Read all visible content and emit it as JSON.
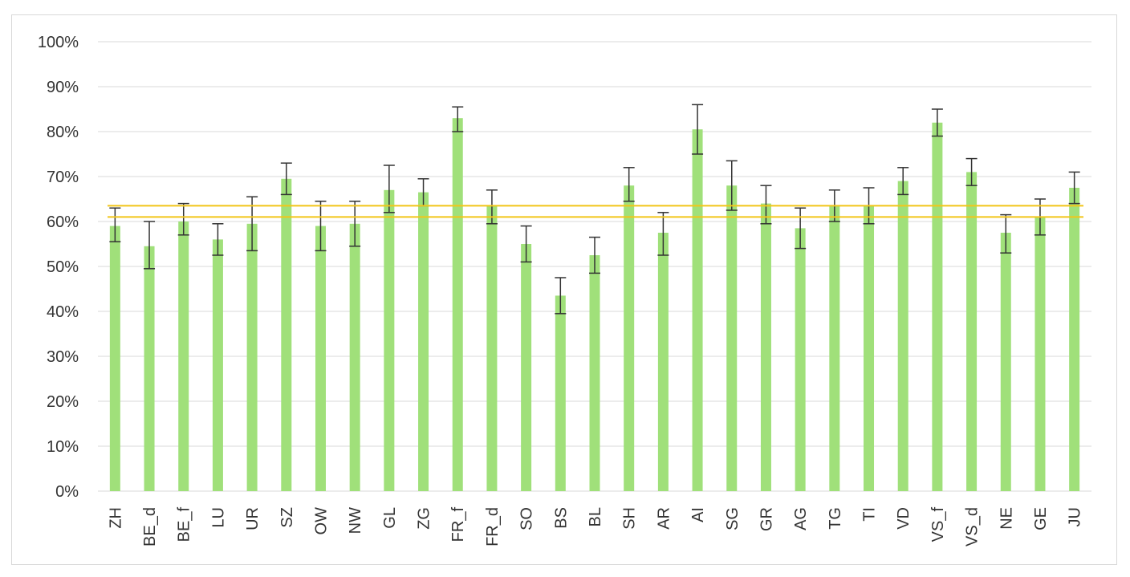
{
  "chart_data": {
    "type": "bar",
    "title": "",
    "xlabel": "",
    "ylabel": "",
    "ylim": [
      0,
      100
    ],
    "y_ticks": [
      "0%",
      "10%",
      "20%",
      "30%",
      "40%",
      "50%",
      "60%",
      "70%",
      "80%",
      "90%",
      "100%"
    ],
    "grid": true,
    "categories": [
      "ZH",
      "BE_d",
      "BE_f",
      "LU",
      "UR",
      "SZ",
      "OW",
      "NW",
      "GL",
      "ZG",
      "FR_f",
      "FR_d",
      "SO",
      "BS",
      "BL",
      "SH",
      "AR",
      "AI",
      "SG",
      "GR",
      "AG",
      "TG",
      "TI",
      "VD",
      "VS_f",
      "VS_d",
      "NE",
      "GE",
      "JU"
    ],
    "values": [
      59,
      54.5,
      60,
      56,
      59.5,
      69.5,
      59,
      59.5,
      67,
      66.5,
      83,
      63.5,
      55,
      43.5,
      52.5,
      68,
      57.5,
      80.5,
      68,
      64,
      58.5,
      63.5,
      63.5,
      69,
      82,
      71,
      57.5,
      61,
      67.5
    ],
    "error_low": [
      55.5,
      49.5,
      57,
      52.5,
      53.5,
      66,
      53.5,
      54.5,
      62,
      63.5,
      80,
      59.5,
      51,
      39.5,
      48.5,
      64.5,
      52.5,
      75,
      62.5,
      59.5,
      54,
      60,
      59.5,
      66,
      79,
      68,
      53,
      57,
      64
    ],
    "error_high": [
      63,
      60,
      64,
      59.5,
      65.5,
      73,
      64.5,
      64.5,
      72.5,
      69.5,
      85.5,
      67,
      59,
      47.5,
      56.5,
      72,
      62,
      86,
      73.5,
      68,
      63,
      67,
      67.5,
      72,
      85,
      74,
      61.5,
      65,
      71
    ],
    "reference_lines": [
      61,
      63.5
    ],
    "colors": {
      "bar": "#a0e07a",
      "error_bar": "#333333",
      "reference_line": "#f2c518",
      "grid": "#d9d9d9"
    }
  }
}
